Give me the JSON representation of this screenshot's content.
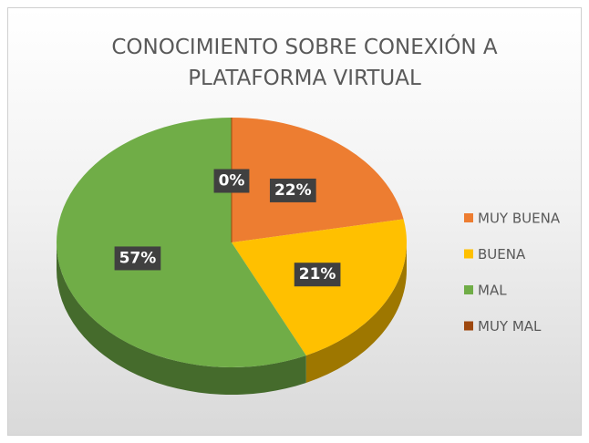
{
  "chart_data": {
    "type": "pie",
    "title": "CONOCIMIENTO SOBRE CONEXIÓN A PLATAFORMA VIRTUAL",
    "categories": [
      "MUY BUENA",
      "BUENA",
      "MAL",
      "MUY MAL"
    ],
    "values": [
      22,
      21,
      57,
      0
    ],
    "value_labels": [
      "22%",
      "21%",
      "57%",
      "0%"
    ],
    "colors": [
      "#ED7D31",
      "#FFC000",
      "#70AD47",
      "#9E480E"
    ],
    "legend": "right"
  }
}
